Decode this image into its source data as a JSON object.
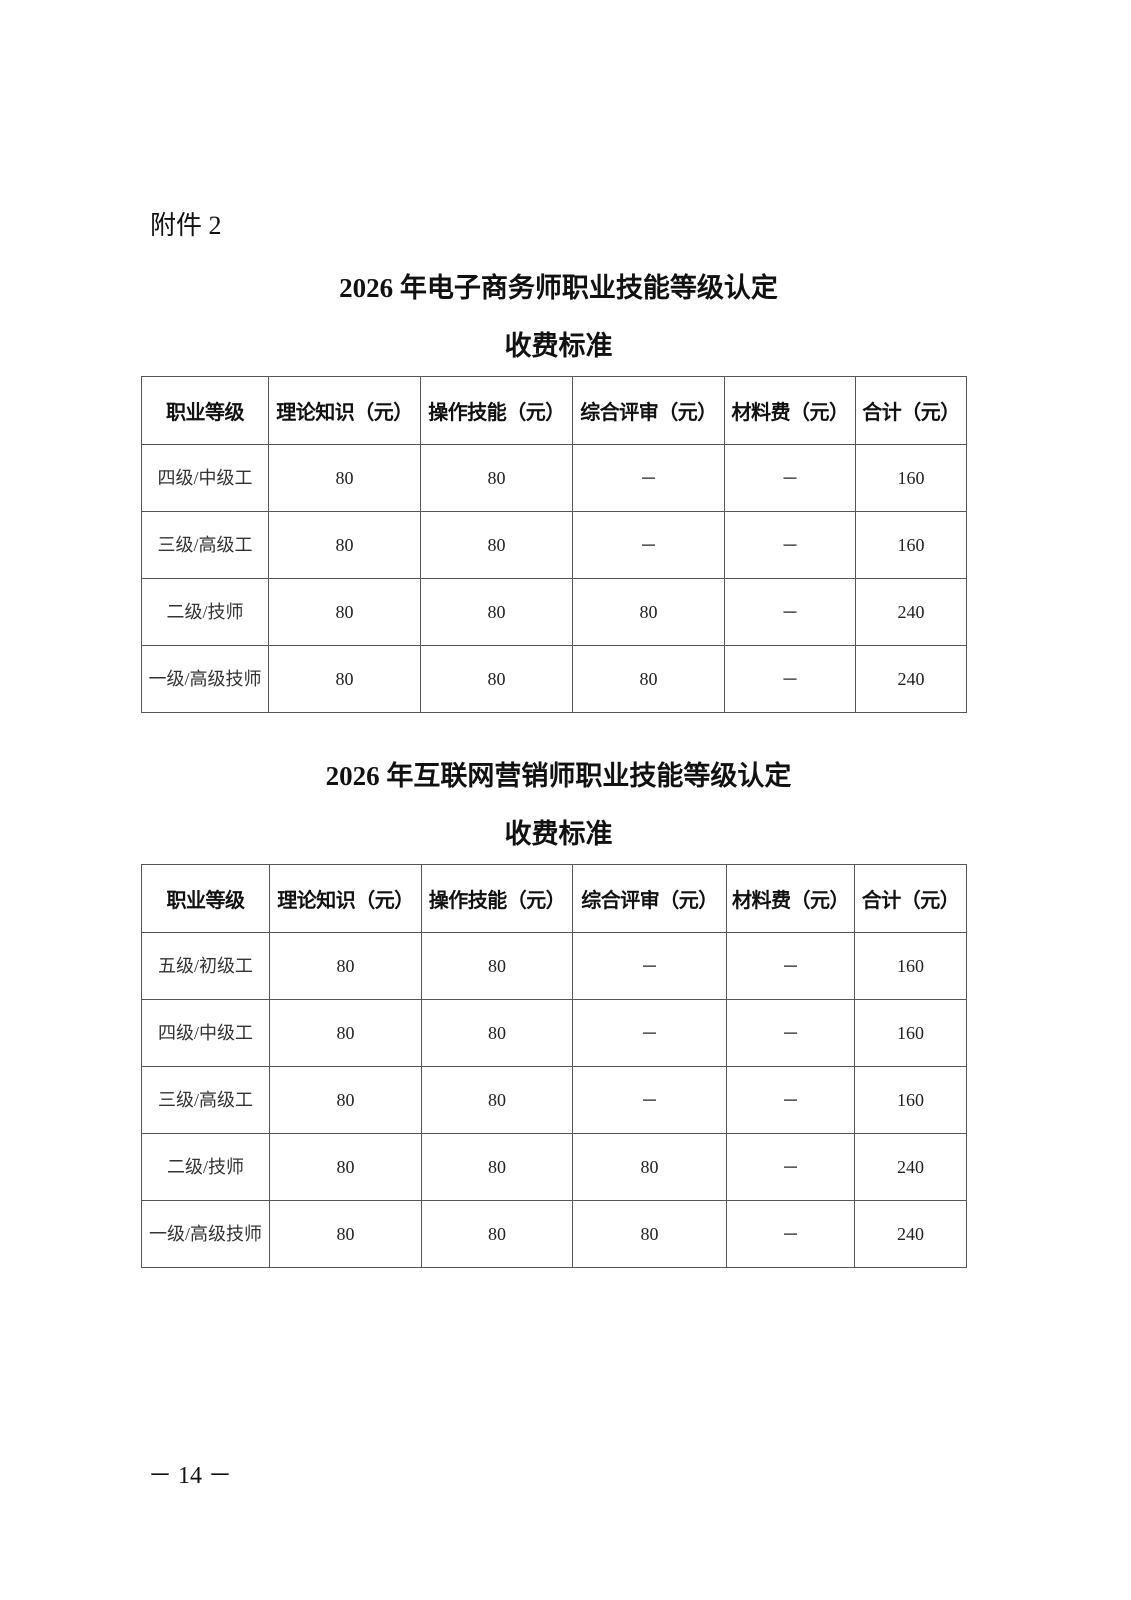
{
  "attachment_label": "附件 2",
  "tables": [
    {
      "title_line1": "2026 年电子商务师职业技能等级认定",
      "title_line2": "收费标准",
      "headers": [
        "职业等级",
        "理论知识（元）",
        "操作技能（元）",
        "综合评审（元）",
        "材料费（元）",
        "合计（元）"
      ],
      "rows": [
        [
          "四级/中级工",
          "80",
          "80",
          "－",
          "－",
          "160"
        ],
        [
          "三级/高级工",
          "80",
          "80",
          "－",
          "－",
          "160"
        ],
        [
          "二级/技师",
          "80",
          "80",
          "80",
          "－",
          "240"
        ],
        [
          "一级/高级技师",
          "80",
          "80",
          "80",
          "－",
          "240"
        ]
      ]
    },
    {
      "title_line1": "2026 年互联网营销师职业技能等级认定",
      "title_line2": "收费标准",
      "headers": [
        "职业等级",
        "理论知识（元）",
        "操作技能（元）",
        "综合评审（元）",
        "材料费（元）",
        "合计（元）"
      ],
      "rows": [
        [
          "五级/初级工",
          "80",
          "80",
          "－",
          "－",
          "160"
        ],
        [
          "四级/中级工",
          "80",
          "80",
          "－",
          "－",
          "160"
        ],
        [
          "三级/高级工",
          "80",
          "80",
          "－",
          "－",
          "160"
        ],
        [
          "二级/技师",
          "80",
          "80",
          "80",
          "－",
          "240"
        ],
        [
          "一级/高级技师",
          "80",
          "80",
          "80",
          "－",
          "240"
        ]
      ]
    }
  ],
  "page_number": "－ 14 －"
}
